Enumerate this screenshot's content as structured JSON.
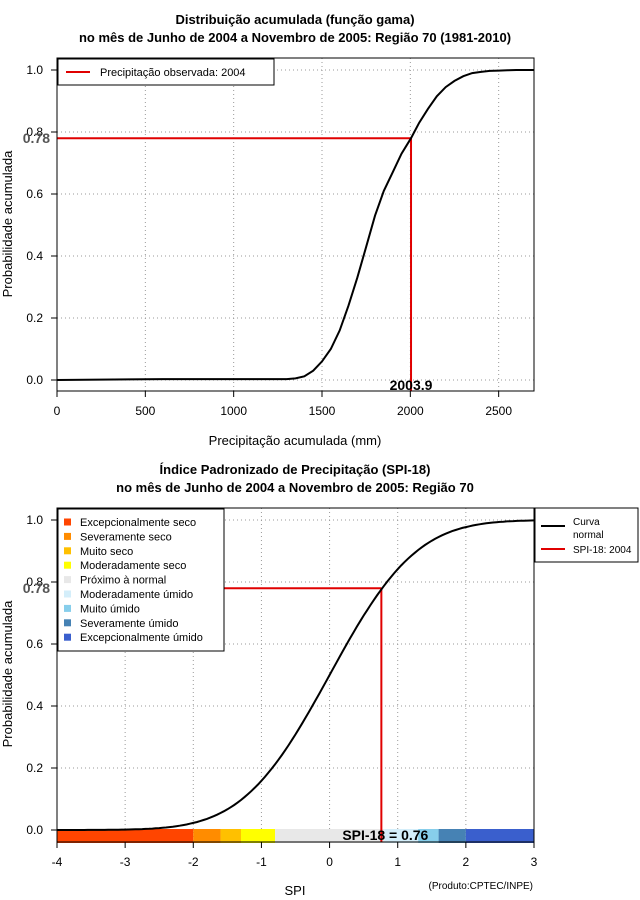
{
  "chart_data": [
    {
      "type": "line",
      "title_line1": "Distribuição acumulada (função gama)",
      "title_line2": "no mês de Junho de 2004 a Novembro de 2005: Região 70 (1981-2010)",
      "xlabel": "Precipitação acumulada (mm)",
      "ylabel": "Probabilidade acumulada",
      "xlim": [
        0,
        2700
      ],
      "ylim": [
        0,
        1
      ],
      "xticks": [
        0,
        500,
        1000,
        1500,
        2000,
        2500
      ],
      "yticks": [
        0.0,
        0.2,
        0.4,
        0.6,
        0.8,
        1.0
      ],
      "ytick_labels": [
        "0.0",
        "0.2",
        "0.4",
        "0.6",
        "0.8",
        "1.0"
      ],
      "grid": true,
      "legend": {
        "position": "top-left",
        "label": "Precipitação observada: 2004",
        "color": "#e00000"
      },
      "curve": {
        "color": "#000000",
        "x": [
          0,
          600,
          1300,
          1350,
          1400,
          1450,
          1500,
          1550,
          1600,
          1650,
          1700,
          1750,
          1800,
          1850,
          1900,
          1950,
          2003.9,
          2050,
          2100,
          2150,
          2200,
          2250,
          2300,
          2350,
          2400,
          2450,
          2500,
          2550,
          2600,
          2700
        ],
        "y": [
          0,
          0.003,
          0.003,
          0.005,
          0.012,
          0.03,
          0.06,
          0.1,
          0.16,
          0.24,
          0.33,
          0.43,
          0.53,
          0.61,
          0.67,
          0.73,
          0.78,
          0.83,
          0.875,
          0.915,
          0.945,
          0.965,
          0.98,
          0.99,
          0.994,
          0.997,
          0.998,
          0.999,
          1.0,
          1.0
        ]
      },
      "marker": {
        "x": 2003.9,
        "y": 0.78,
        "x_label": "2003.9",
        "y_label": "0.78",
        "color": "#e00000"
      }
    },
    {
      "type": "line",
      "title_line1": "Índice Padronizado de Precipitação (SPI-18)",
      "title_line2": "no mês de Junho de 2004 a Novembro de 2005: Região 70",
      "xlabel": "SPI",
      "ylabel": "Probabilidade acumulada",
      "xlim": [
        -4,
        3
      ],
      "ylim": [
        0,
        1
      ],
      "xticks": [
        -4,
        -3,
        -2,
        -1,
        0,
        1,
        2,
        3
      ],
      "yticks": [
        0.0,
        0.2,
        0.4,
        0.6,
        0.8,
        1.0
      ],
      "ytick_labels": [
        "0.0",
        "0.2",
        "0.4",
        "0.6",
        "0.8",
        "1.0"
      ],
      "grid": true,
      "curve": {
        "name": "Curva normal",
        "name_line1": "Curva",
        "name_line2": "normal",
        "color": "#000000",
        "distribution": "standard normal CDF"
      },
      "marker": {
        "x": 0.76,
        "y": 0.78,
        "label": "SPI-18 = 0.76",
        "y_label": "0.78",
        "color": "#e00000",
        "legend_label": "SPI-18: 2004"
      },
      "category_legend": {
        "position": "top-left",
        "items": [
          {
            "label": "Excepcionalmente seco",
            "color": "#ff4500"
          },
          {
            "label": "Severamente seco",
            "color": "#ff8c00"
          },
          {
            "label": "Muito seco",
            "color": "#ffc000"
          },
          {
            "label": "Moderadamente seco",
            "color": "#ffff00"
          },
          {
            "label": "Próximo à normal",
            "color": "#e8e8e8"
          },
          {
            "label": "Moderadamente úmido",
            "color": "#d4eefa"
          },
          {
            "label": "Muito úmido",
            "color": "#87ceeb"
          },
          {
            "label": "Severamente úmido",
            "color": "#4682b4"
          },
          {
            "label": "Excepcionalmente úmido",
            "color": "#3a5fcd"
          }
        ]
      },
      "series_legend": {
        "position": "top-right"
      },
      "band": [
        {
          "from": -4,
          "to": -2,
          "color": "#ff4500"
        },
        {
          "from": -2,
          "to": -1.6,
          "color": "#ff8c00"
        },
        {
          "from": -1.6,
          "to": -1.3,
          "color": "#ffc000"
        },
        {
          "from": -1.3,
          "to": -0.8,
          "color": "#ffff00"
        },
        {
          "from": -0.8,
          "to": 0.8,
          "color": "#e8e8e8"
        },
        {
          "from": 0.8,
          "to": 1.3,
          "color": "#d4eefa"
        },
        {
          "from": 1.3,
          "to": 1.6,
          "color": "#87ceeb"
        },
        {
          "from": 1.6,
          "to": 2,
          "color": "#4682b4"
        },
        {
          "from": 2,
          "to": 3,
          "color": "#3a5fcd"
        }
      ]
    }
  ],
  "credit": "(Produto:CPTEC/INPE)"
}
